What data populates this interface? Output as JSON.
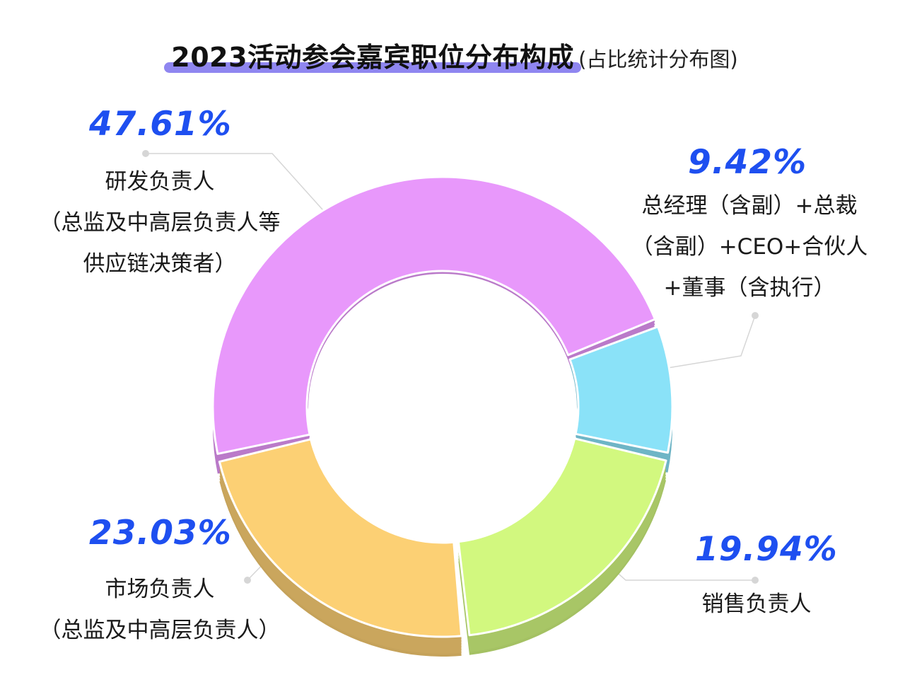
{
  "title": {
    "main": "2023活动参会嘉宾职位分布构成",
    "sub": "(占比统计分布图)"
  },
  "chart_data": {
    "type": "pie",
    "variant": "donut-3d",
    "labels": [
      "研发负责人(总监及中高层负责人等供应链决策者)",
      "总经理（含副）+总裁（含副）+CEO+合伙人+董事（含执行）",
      "销售负责人",
      "市场负责人(总监及中高层负责人)"
    ],
    "values": [
      47.61,
      9.42,
      19.94,
      23.03
    ],
    "colors": [
      "#e898fb",
      "#8ae2f8",
      "#d2f87f",
      "#fcd074"
    ]
  },
  "labels": {
    "rd": {
      "pct": "47.61%",
      "lines": [
        "研发负责人",
        "（总监及中高层负责人等",
        "供应链决策者）"
      ]
    },
    "gm": {
      "pct": "9.42%",
      "lines": [
        "总经理（含副）+总裁",
        "（含副）+CEO+合伙人",
        "+董事（含执行）"
      ]
    },
    "sales": {
      "pct": "19.94%",
      "lines": [
        "销售负责人"
      ]
    },
    "mkt": {
      "pct": "23.03%",
      "lines": [
        "市场负责人",
        "（总监及中高层负责人）"
      ]
    }
  }
}
